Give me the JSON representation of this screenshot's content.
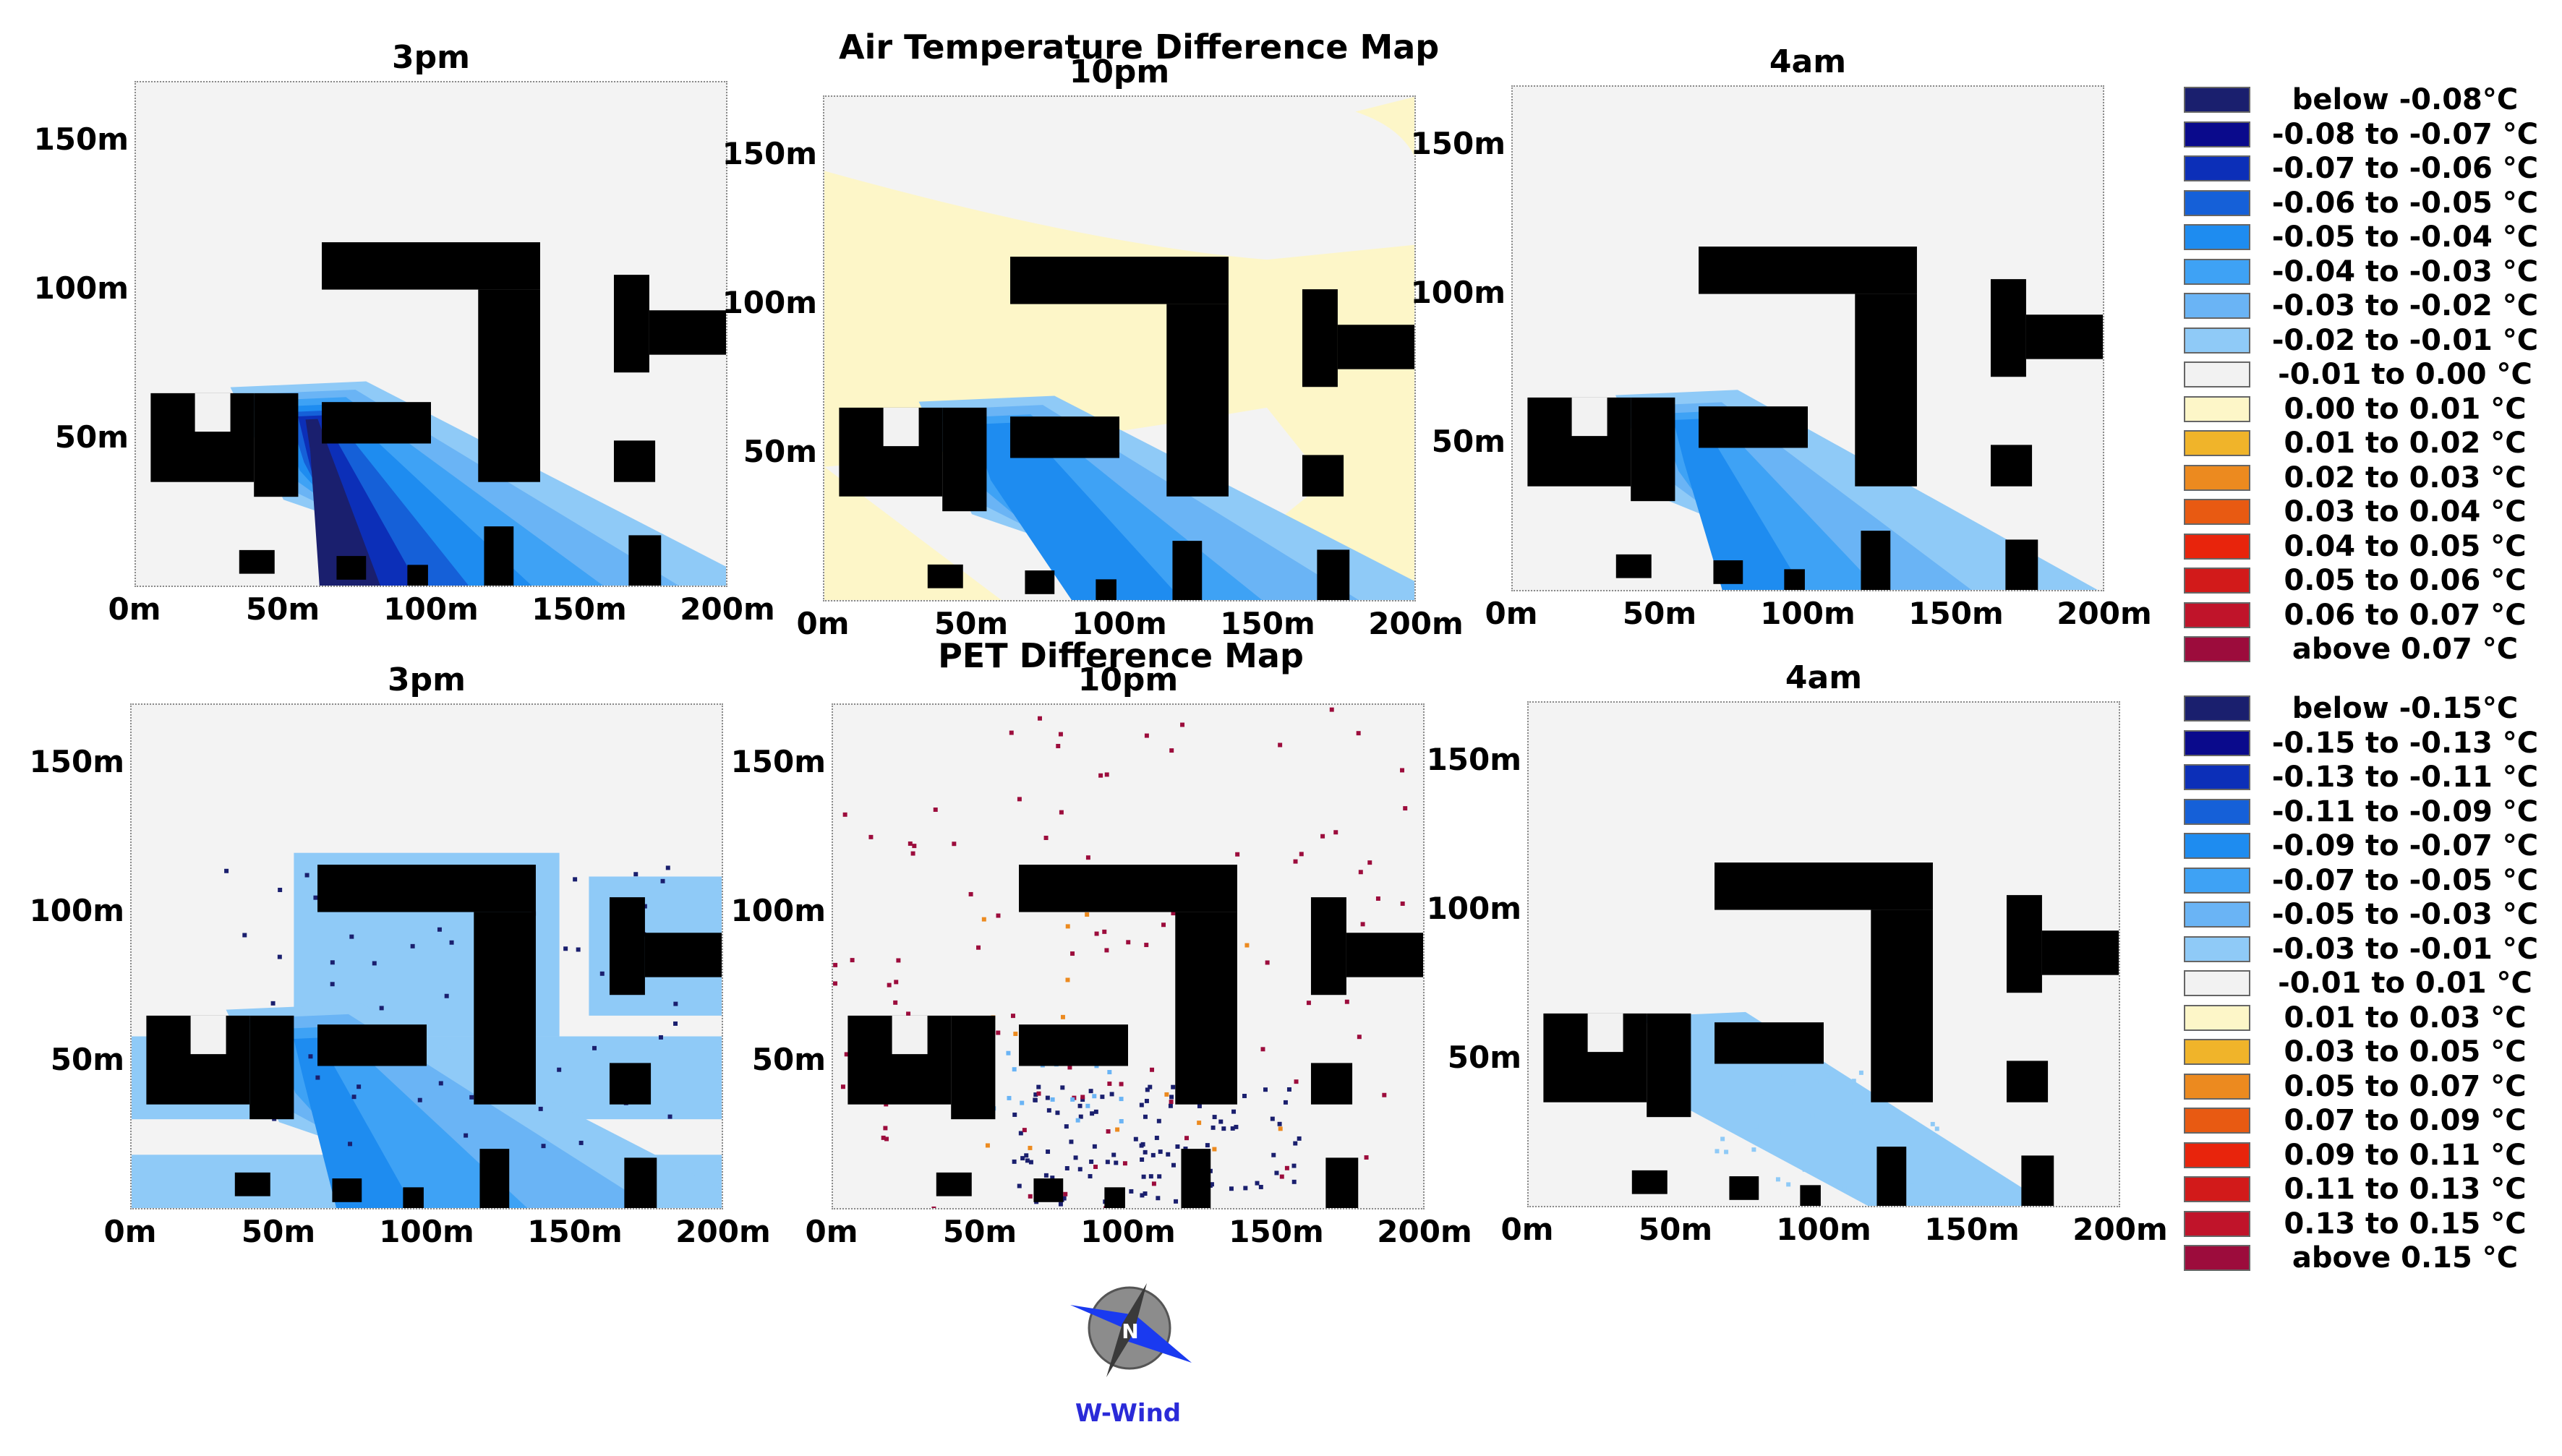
{
  "titles": {
    "air": "Air Temperature Difference Map",
    "pet": "PET Difference Map"
  },
  "panels": [
    {
      "id": "air-3pm",
      "title": "3pm",
      "yticks": [
        "150m",
        "100m",
        "50m"
      ],
      "xticks": [
        "0m",
        "50m",
        "100m",
        "150m",
        "200m"
      ]
    },
    {
      "id": "air-10pm",
      "title": "10pm",
      "yticks": [
        "150m",
        "100m",
        "50m"
      ],
      "xticks": [
        "0m",
        "50m",
        "100m",
        "150m",
        "200m"
      ]
    },
    {
      "id": "air-4am",
      "title": "4am",
      "yticks": [
        "150m",
        "100m",
        "50m"
      ],
      "xticks": [
        "0m",
        "50m",
        "100m",
        "150m",
        "200m"
      ]
    },
    {
      "id": "pet-3pm",
      "title": "3pm",
      "yticks": [
        "150m",
        "100m",
        "50m"
      ],
      "xticks": [
        "0m",
        "50m",
        "100m",
        "150m",
        "200m"
      ]
    },
    {
      "id": "pet-10pm",
      "title": "10pm",
      "yticks": [
        "150m",
        "100m",
        "50m"
      ],
      "xticks": [
        "0m",
        "50m",
        "100m",
        "150m",
        "200m"
      ]
    },
    {
      "id": "pet-4am",
      "title": "4am",
      "yticks": [
        "150m",
        "100m",
        "50m"
      ],
      "xticks": [
        "0m",
        "50m",
        "100m",
        "150m",
        "200m"
      ]
    }
  ],
  "legend_air": [
    {
      "label": "below -0.08°C",
      "color": "#1a1f6e"
    },
    {
      "label": "-0.08 to -0.07 °C",
      "color": "#0a0a8c"
    },
    {
      "label": "-0.07 to -0.06 °C",
      "color": "#0c2fb8"
    },
    {
      "label": "-0.06 to -0.05 °C",
      "color": "#1560d8"
    },
    {
      "label": "-0.05 to -0.04 °C",
      "color": "#1e8cf0"
    },
    {
      "label": "-0.04 to -0.03 °C",
      "color": "#3ea2f5"
    },
    {
      "label": "-0.03 to -0.02 °C",
      "color": "#6ab4f5"
    },
    {
      "label": "-0.02 to -0.01 °C",
      "color": "#8fcaf7"
    },
    {
      "label": "-0.01 to 0.00 °C",
      "color": "#f2f2f2"
    },
    {
      "label": "0.00 to 0.01 °C",
      "color": "#fdf6c8"
    },
    {
      "label": "0.01 to 0.02 °C",
      "color": "#f0b42a"
    },
    {
      "label": "0.02 to 0.03 °C",
      "color": "#ec8a1f"
    },
    {
      "label": "0.03 to 0.04 °C",
      "color": "#e85a12"
    },
    {
      "label": "0.04 to 0.05 °C",
      "color": "#e8240c"
    },
    {
      "label": "0.05 to 0.06 °C",
      "color": "#d21a1a"
    },
    {
      "label": "0.06 to 0.07 °C",
      "color": "#c0142a"
    },
    {
      "label": "above 0.07 °C",
      "color": "#9c0c3c"
    }
  ],
  "legend_pet": [
    {
      "label": "below -0.15°C",
      "color": "#1a1f6e"
    },
    {
      "label": "-0.15 to -0.13 °C",
      "color": "#0a0a8c"
    },
    {
      "label": "-0.13 to -0.11 °C",
      "color": "#0c2fb8"
    },
    {
      "label": "-0.11 to -0.09 °C",
      "color": "#1560d8"
    },
    {
      "label": "-0.09 to -0.07 °C",
      "color": "#1e8cf0"
    },
    {
      "label": "-0.07 to -0.05 °C",
      "color": "#3ea2f5"
    },
    {
      "label": "-0.05 to -0.03 °C",
      "color": "#6ab4f5"
    },
    {
      "label": "-0.03 to -0.01 °C",
      "color": "#8fcaf7"
    },
    {
      "label": "-0.01 to 0.01 °C",
      "color": "#f2f2f2"
    },
    {
      "label": "0.01 to 0.03 °C",
      "color": "#fdf6c8"
    },
    {
      "label": "0.03 to 0.05 °C",
      "color": "#f0b42a"
    },
    {
      "label": "0.05 to 0.07 °C",
      "color": "#ec8a1f"
    },
    {
      "label": "0.07 to 0.09 °C",
      "color": "#e85a12"
    },
    {
      "label": "0.09 to 0.11 °C",
      "color": "#e8240c"
    },
    {
      "label": "0.11 to 0.13 °C",
      "color": "#d21a1a"
    },
    {
      "label": "0.13 to 0.15 °C",
      "color": "#c0142a"
    },
    {
      "label": "above 0.15 °C",
      "color": "#9c0c3c"
    }
  ],
  "compass": {
    "north_label": "N",
    "caption": "W-Wind"
  },
  "chart_data": {
    "type": "heatmap",
    "x_unit": "m",
    "y_unit": "m",
    "xlim": [
      0,
      200
    ],
    "ylim": [
      0,
      170
    ],
    "xticks": [
      0,
      50,
      100,
      150,
      200
    ],
    "yticks": [
      50,
      100,
      150
    ],
    "buildings_m": [
      [
        5,
        40,
        35,
        65
      ],
      [
        40,
        55,
        30,
        65
      ],
      [
        63,
        100,
        48,
        62
      ],
      [
        63,
        137,
        100,
        116
      ],
      [
        116,
        137,
        35,
        100
      ],
      [
        162,
        174,
        72,
        105
      ],
      [
        174,
        200,
        78,
        93
      ],
      [
        162,
        176,
        35,
        49
      ],
      [
        35,
        47,
        4,
        12
      ],
      [
        68,
        78,
        2,
        10
      ],
      [
        92,
        99,
        0,
        7
      ],
      [
        118,
        128,
        0,
        20
      ],
      [
        167,
        178,
        0,
        17
      ]
    ],
    "maps": [
      {
        "panel": "air-3pm",
        "time": "3pm",
        "variable": "air temperature difference",
        "plume": "strong",
        "min_class": "below -0.08°C",
        "background": "-0.01 to 0.00 °C"
      },
      {
        "panel": "air-10pm",
        "time": "10pm",
        "variable": "air temperature difference",
        "plume": "medium",
        "warm_background": "0.00 to 0.01 °C"
      },
      {
        "panel": "air-4am",
        "time": "4am",
        "variable": "air temperature difference",
        "plume": "weak",
        "min_class": "-0.06 to -0.05 °C"
      },
      {
        "panel": "pet-3pm",
        "time": "3pm",
        "variable": "PET difference",
        "plume": "broad",
        "min_class": "-0.09 to -0.07 °C"
      },
      {
        "panel": "pet-10pm",
        "time": "10pm",
        "variable": "PET difference",
        "plume": "scattered points",
        "classes": [
          "below -0.15°C",
          "above 0.15 °C",
          "0.05 to 0.07 °C"
        ]
      },
      {
        "panel": "pet-4am",
        "time": "4am",
        "variable": "PET difference",
        "plume": "light",
        "min_class": "-0.03 to -0.01 °C"
      }
    ]
  }
}
